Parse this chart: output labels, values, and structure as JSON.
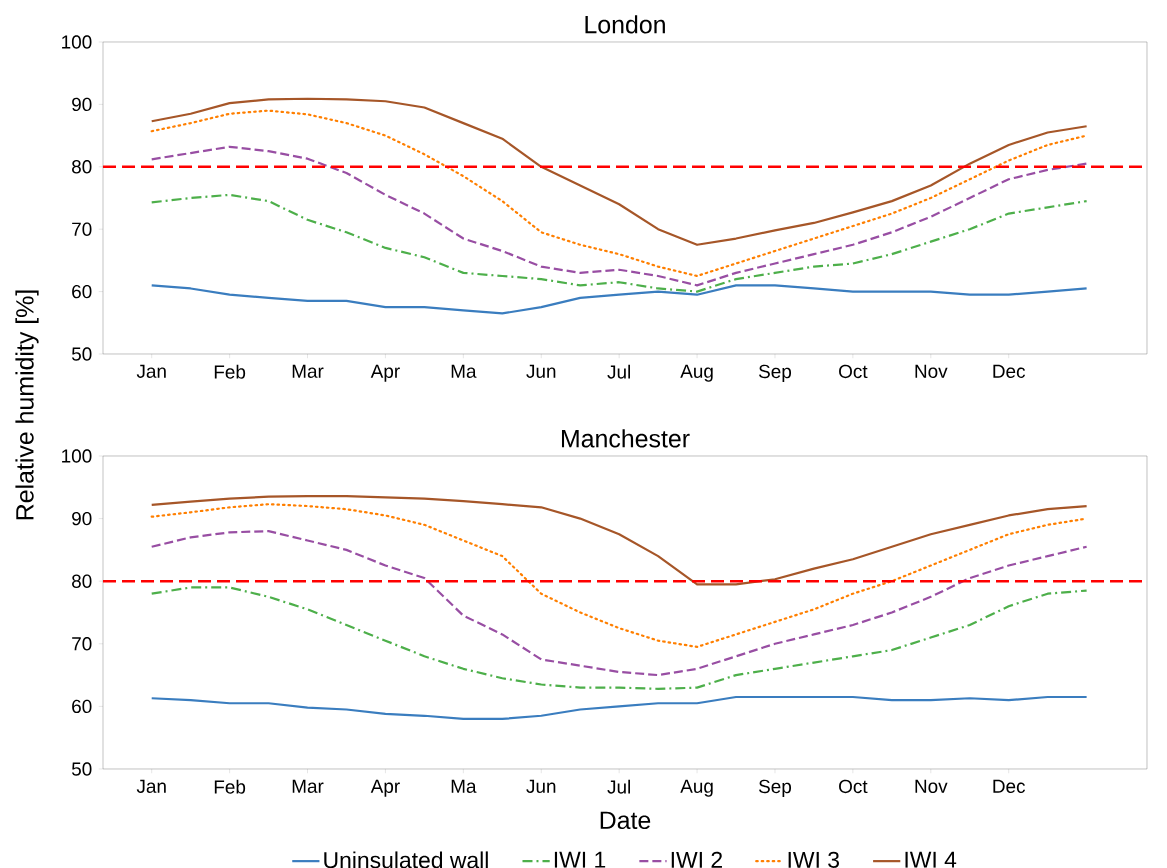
{
  "chart_data": [
    {
      "type": "line",
      "title": "London",
      "ylabel": "Relative humidity [%]",
      "categories": [
        "Jan",
        null,
        "Feb",
        null,
        "Mar",
        null,
        "Apr",
        null,
        "Ma",
        null,
        "Jun",
        null,
        "Jul",
        null,
        "Aug",
        null,
        "Sep",
        null,
        "Oct",
        null,
        "Nov",
        null,
        "Dec",
        null,
        null
      ],
      "ylim": [
        50,
        100
      ],
      "yticks": [
        50,
        60,
        70,
        80,
        90,
        100
      ],
      "grid": false,
      "legend": false,
      "ref_lines": [
        {
          "axis": "y",
          "value": 80,
          "color": "#ff0000",
          "line_style": "dashed"
        }
      ],
      "series": [
        {
          "color": "#3a7dbf",
          "line_style": "solid",
          "values": [
            61,
            60.5,
            59.5,
            59,
            58.5,
            58.5,
            57.5,
            57.5,
            57,
            56.5,
            57.5,
            59,
            59.5,
            60,
            59.5,
            61,
            61,
            60.5,
            60,
            60,
            60,
            59.5,
            59.5,
            60,
            60.5
          ]
        },
        {
          "color": "#4daf4a",
          "line_style": "dashdot",
          "values": [
            74.3,
            75,
            75.5,
            74.5,
            71.5,
            69.5,
            67,
            65.5,
            63,
            62.5,
            62,
            61,
            61.5,
            60.5,
            60,
            62,
            63,
            64,
            64.5,
            66,
            68,
            70,
            72.5,
            73.5,
            74.5
          ]
        },
        {
          "color": "#984ea3",
          "line_style": "dashed",
          "values": [
            81.2,
            82.2,
            83.2,
            82.5,
            81.3,
            79,
            75.5,
            72.5,
            68.5,
            66.5,
            64,
            63,
            63.5,
            62.5,
            61,
            63,
            64.5,
            66,
            67.5,
            69.5,
            72,
            75,
            78,
            79.5,
            80.5
          ]
        },
        {
          "color": "#ff7f00",
          "line_style": "dotted",
          "values": [
            85.7,
            87,
            88.5,
            89,
            88.4,
            87,
            85,
            82,
            78.5,
            74.5,
            69.5,
            67.5,
            66,
            64,
            62.5,
            64.5,
            66.5,
            68.5,
            70.5,
            72.5,
            75,
            78,
            81,
            83.5,
            85
          ]
        },
        {
          "color": "#a65628",
          "line_style": "solid",
          "values": [
            87.3,
            88.5,
            90.2,
            90.8,
            90.9,
            90.8,
            90.5,
            89.5,
            87,
            84.5,
            80,
            77,
            74,
            70,
            67.5,
            68.5,
            69.8,
            71,
            72.7,
            74.5,
            77,
            80.5,
            83.5,
            85.5,
            86.5
          ]
        }
      ]
    },
    {
      "type": "line",
      "title": "Manchester",
      "xlabel": "Date",
      "categories": [
        "Jan",
        null,
        "Feb",
        null,
        "Mar",
        null,
        "Apr",
        null,
        "Ma",
        null,
        "Jun",
        null,
        "Jul",
        null,
        "Aug",
        null,
        "Sep",
        null,
        "Oct",
        null,
        "Nov",
        null,
        "Dec",
        null,
        null
      ],
      "ylim": [
        50,
        100
      ],
      "yticks": [
        50,
        60,
        70,
        80,
        90,
        100
      ],
      "grid": false,
      "legend": "bottom",
      "ref_lines": [
        {
          "axis": "y",
          "value": 80,
          "color": "#ff0000",
          "line_style": "dashed"
        }
      ],
      "series": [
        {
          "name": "Uninsulated wall",
          "color": "#3a7dbf",
          "line_style": "solid",
          "values": [
            61.3,
            61,
            60.5,
            60.5,
            59.8,
            59.5,
            58.8,
            58.5,
            58,
            58,
            58.5,
            59.5,
            60,
            60.5,
            60.5,
            61.5,
            61.5,
            61.5,
            61.5,
            61,
            61,
            61.3,
            61,
            61.5,
            61.5
          ]
        },
        {
          "name": "IWI 1",
          "color": "#4daf4a",
          "line_style": "dashdot",
          "values": [
            78,
            79,
            79,
            77.5,
            75.5,
            73,
            70.5,
            68,
            66,
            64.5,
            63.5,
            63,
            63,
            62.8,
            63,
            65,
            66,
            67,
            68,
            69,
            71,
            73,
            76,
            78,
            78.5
          ]
        },
        {
          "name": "IWI 2",
          "color": "#984ea3",
          "line_style": "dashed",
          "values": [
            85.5,
            87,
            87.8,
            88,
            86.5,
            85,
            82.5,
            80.5,
            74.5,
            71.5,
            67.5,
            66.5,
            65.5,
            65,
            66,
            68,
            70,
            71.5,
            73,
            75,
            77.5,
            80.5,
            82.5,
            84,
            85.5
          ]
        },
        {
          "name": "IWI 3",
          "color": "#ff7f00",
          "line_style": "dotted",
          "values": [
            90.3,
            91,
            91.8,
            92.3,
            92,
            91.5,
            90.5,
            89,
            86.5,
            84,
            78,
            75,
            72.5,
            70.5,
            69.5,
            71.5,
            73.5,
            75.5,
            78,
            80,
            82.5,
            85,
            87.5,
            89,
            90
          ]
        },
        {
          "name": "IWI 4",
          "color": "#a65628",
          "line_style": "solid",
          "values": [
            92.2,
            92.7,
            93.2,
            93.5,
            93.6,
            93.6,
            93.4,
            93.2,
            92.8,
            92.3,
            91.8,
            90,
            87.5,
            84,
            79.5,
            79.5,
            80.3,
            82,
            83.5,
            85.5,
            87.5,
            89,
            90.5,
            91.5,
            92
          ]
        }
      ]
    }
  ]
}
